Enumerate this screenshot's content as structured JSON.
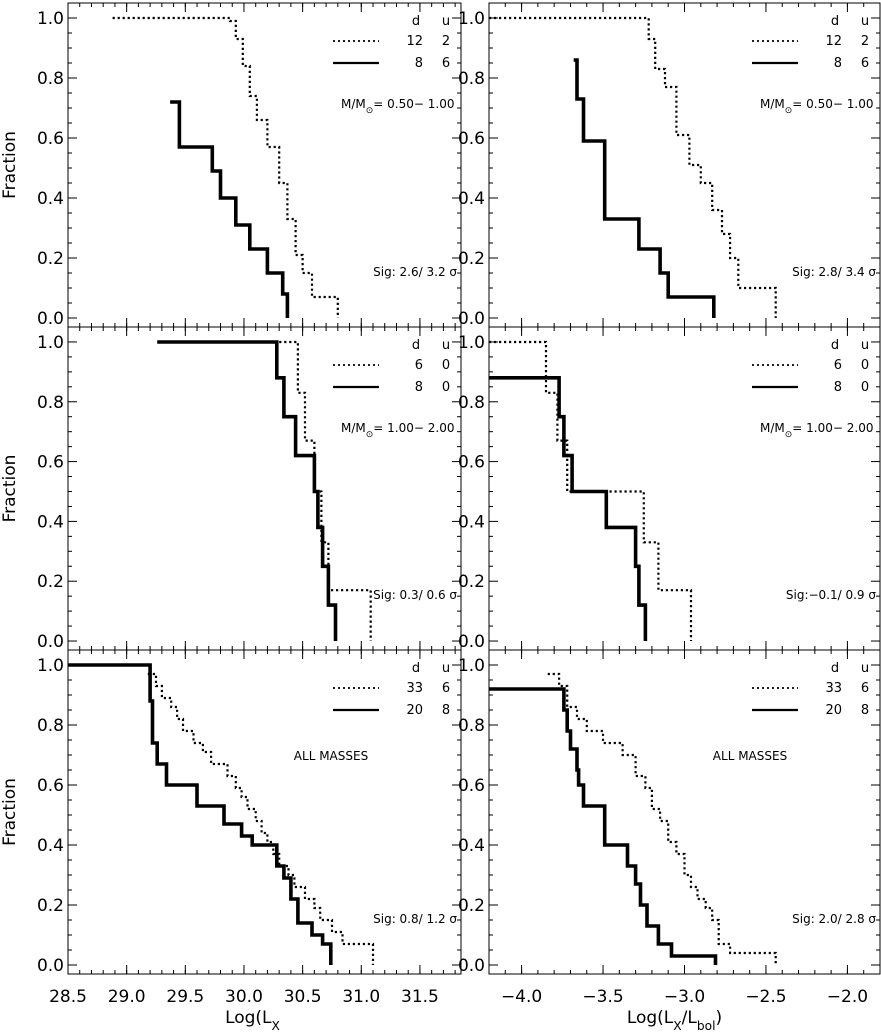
{
  "chart_data": {
    "type": "line",
    "step": true,
    "ylabel": "Fraction",
    "xlabels": [
      "Log(L_X)",
      "Log(L_X/L_bol)"
    ],
    "ylim": [
      -0.03,
      1.05
    ],
    "yticks": [
      0.0,
      0.2,
      0.4,
      0.6,
      0.8,
      1.0
    ],
    "ytick_labels": [
      "0.0",
      "0.2",
      "0.4",
      "0.6",
      "0.8",
      "1.0"
    ],
    "columns": [
      {
        "xlim": [
          28.5,
          31.85
        ],
        "xticks": [
          28.5,
          29.0,
          29.5,
          30.0,
          30.5,
          31.0,
          31.5
        ],
        "xtick_labels": [
          "28.5",
          "29.0",
          "29.5",
          "30.0",
          "30.5",
          "31.0",
          "31.5"
        ]
      },
      {
        "xlim": [
          -4.2,
          -1.8
        ],
        "xticks": [
          -4.0,
          -3.5,
          -3.0,
          -2.5,
          -2.0
        ],
        "xtick_labels": [
          "−4.0",
          "−3.5",
          "−3.0",
          "−2.5",
          "−2.0"
        ]
      }
    ],
    "legend_header": [
      "d",
      "u"
    ],
    "panels": [
      {
        "row": 0,
        "col": 0,
        "mass_label": "0.50− 1.00",
        "sig": "Sig: 2.6/ 3.2 σ",
        "series": [
          {
            "style": "dotted",
            "d": "12",
            "u": "2",
            "x": [
              28.88,
              29.88,
              29.93,
              29.99,
              30.05,
              30.11,
              30.2,
              30.3,
              30.37,
              30.44,
              30.5,
              30.58,
              30.8
            ],
            "y": [
              1.0,
              0.99,
              0.93,
              0.84,
              0.74,
              0.66,
              0.57,
              0.45,
              0.33,
              0.21,
              0.15,
              0.07,
              0.0
            ]
          },
          {
            "style": "solid",
            "d": "8",
            "u": "6",
            "x": [
              29.37,
              29.45,
              29.73,
              29.8,
              29.93,
              30.05,
              30.2,
              30.33,
              30.37
            ],
            "y": [
              0.72,
              0.57,
              0.49,
              0.4,
              0.31,
              0.23,
              0.15,
              0.08,
              0.0
            ]
          }
        ]
      },
      {
        "row": 0,
        "col": 1,
        "mass_label": "0.50− 1.00",
        "sig": "Sig: 2.8/ 3.4 σ",
        "series": [
          {
            "style": "dotted",
            "d": "12",
            "u": "2",
            "x": [
              -4.2,
              -3.22,
              -3.18,
              -3.12,
              -3.05,
              -2.97,
              -2.9,
              -2.83,
              -2.77,
              -2.72,
              -2.67,
              -2.44
            ],
            "y": [
              1.0,
              0.93,
              0.83,
              0.77,
              0.61,
              0.51,
              0.45,
              0.36,
              0.28,
              0.2,
              0.1,
              0.0
            ]
          },
          {
            "style": "solid",
            "d": "8",
            "u": "6",
            "x": [
              -3.68,
              -3.66,
              -3.62,
              -3.49,
              -3.28,
              -3.15,
              -3.1,
              -2.82
            ],
            "y": [
              0.86,
              0.73,
              0.59,
              0.33,
              0.23,
              0.15,
              0.07,
              0.0
            ]
          }
        ]
      },
      {
        "row": 1,
        "col": 0,
        "mass_label": "1.00− 2.00",
        "sig": "Sig: 0.3/ 0.6 σ",
        "series": [
          {
            "style": "dotted",
            "d": "6",
            "u": "0",
            "x": [
              30.3,
              30.46,
              30.52,
              30.6,
              30.66,
              30.72,
              30.79,
              31.08
            ],
            "y": [
              1.0,
              0.83,
              0.67,
              0.5,
              0.33,
              0.17,
              0.17,
              0.0
            ]
          },
          {
            "style": "solid",
            "d": "8",
            "u": "0",
            "x": [
              29.26,
              30.28,
              30.34,
              30.44,
              30.6,
              30.63,
              30.67,
              30.72,
              30.78
            ],
            "y": [
              1.0,
              0.88,
              0.75,
              0.62,
              0.5,
              0.38,
              0.25,
              0.12,
              0.0
            ]
          }
        ]
      },
      {
        "row": 1,
        "col": 1,
        "mass_label": "1.00− 2.00",
        "sig": "Sig:−0.1/ 0.9 σ",
        "series": [
          {
            "style": "dotted",
            "d": "6",
            "u": "0",
            "x": [
              -4.2,
              -3.85,
              -3.78,
              -3.72,
              -3.48,
              -3.25,
              -3.16,
              -3.0,
              -2.96
            ],
            "y": [
              1.0,
              0.83,
              0.67,
              0.5,
              0.5,
              0.33,
              0.17,
              0.17,
              0.0
            ]
          },
          {
            "style": "solid",
            "d": "8",
            "u": "0",
            "x": [
              -4.2,
              -3.77,
              -3.74,
              -3.69,
              -3.48,
              -3.3,
              -3.28,
              -3.24
            ],
            "y": [
              0.88,
              0.75,
              0.62,
              0.5,
              0.38,
              0.25,
              0.12,
              0.0
            ]
          }
        ]
      },
      {
        "row": 2,
        "col": 0,
        "mass_label": "ALL MASSES",
        "sig": "Sig: 0.8/ 1.2 σ",
        "series": [
          {
            "style": "dotted",
            "d": "33",
            "u": "6",
            "x": [
              29.18,
              29.25,
              29.3,
              29.38,
              29.43,
              29.48,
              29.57,
              29.65,
              29.72,
              29.8,
              29.86,
              29.93,
              29.98,
              30.03,
              30.1,
              30.15,
              30.2,
              30.25,
              30.3,
              30.38,
              30.43,
              30.52,
              30.6,
              30.65,
              30.75,
              30.84,
              31.1
            ],
            "y": [
              0.97,
              0.93,
              0.89,
              0.86,
              0.82,
              0.78,
              0.74,
              0.71,
              0.67,
              0.67,
              0.63,
              0.59,
              0.56,
              0.52,
              0.48,
              0.44,
              0.41,
              0.37,
              0.33,
              0.3,
              0.26,
              0.22,
              0.19,
              0.15,
              0.11,
              0.07,
              0.0
            ]
          },
          {
            "style": "solid",
            "d": "20",
            "u": "8",
            "x": [
              28.5,
              29.2,
              29.22,
              29.26,
              29.34,
              29.45,
              29.6,
              29.83,
              29.9,
              29.98,
              30.07,
              30.28,
              30.34,
              30.4,
              30.46,
              30.58,
              30.67,
              30.74
            ],
            "y": [
              1.0,
              0.88,
              0.74,
              0.67,
              0.6,
              0.6,
              0.53,
              0.47,
              0.47,
              0.43,
              0.4,
              0.33,
              0.29,
              0.22,
              0.14,
              0.1,
              0.07,
              0.0
            ]
          }
        ]
      },
      {
        "row": 2,
        "col": 1,
        "mass_label": "ALL MASSES",
        "sig": "Sig: 2.0/ 2.8 σ",
        "series": [
          {
            "style": "dotted",
            "d": "33",
            "u": "6",
            "x": [
              -3.84,
              -3.77,
              -3.72,
              -3.66,
              -3.6,
              -3.5,
              -3.38,
              -3.3,
              -3.24,
              -3.2,
              -3.15,
              -3.1,
              -3.05,
              -3.0,
              -2.96,
              -2.92,
              -2.87,
              -2.83,
              -2.79,
              -2.72,
              -2.65,
              -2.44
            ],
            "y": [
              0.97,
              0.93,
              0.86,
              0.82,
              0.78,
              0.74,
              0.7,
              0.63,
              0.59,
              0.52,
              0.48,
              0.41,
              0.37,
              0.3,
              0.26,
              0.22,
              0.19,
              0.15,
              0.07,
              0.04,
              0.04,
              0.0
            ]
          },
          {
            "style": "solid",
            "d": "20",
            "u": "8",
            "x": [
              -4.2,
              -3.74,
              -3.72,
              -3.7,
              -3.66,
              -3.65,
              -3.62,
              -3.49,
              -3.35,
              -3.3,
              -3.27,
              -3.23,
              -3.16,
              -3.08,
              -2.81
            ],
            "y": [
              0.92,
              0.85,
              0.78,
              0.72,
              0.65,
              0.6,
              0.53,
              0.4,
              0.33,
              0.27,
              0.2,
              0.13,
              0.07,
              0.03,
              0.0
            ]
          }
        ]
      }
    ]
  }
}
